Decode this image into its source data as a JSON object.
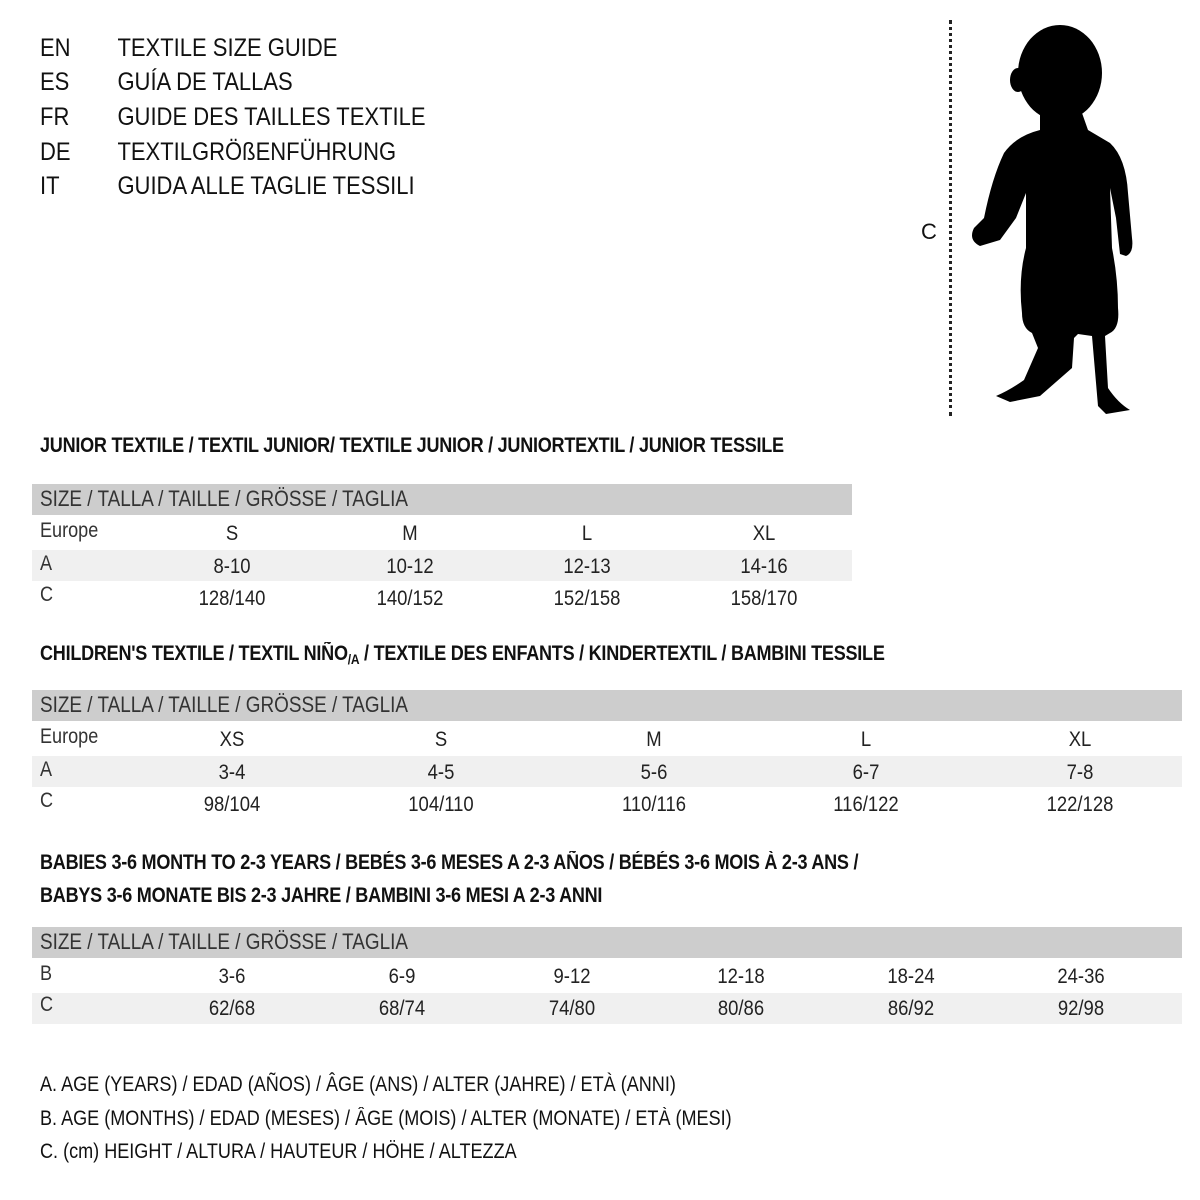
{
  "title_lines": [
    {
      "code": "EN",
      "text": "TEXTILE SIZE GUIDE"
    },
    {
      "code": "ES",
      "text": "GUÍA DE TALLAS"
    },
    {
      "code": "FR",
      "text": "GUIDE DES TAILLES TEXTILE"
    },
    {
      "code": "DE",
      "text": "TEXTILGRÖßENFÜHRUNG"
    },
    {
      "code": "IT",
      "text": "GUIDA ALLE TAGLIE TESSILI"
    }
  ],
  "figure": {
    "measure_label": "C",
    "icon": "child-silhouette-icon"
  },
  "junior": {
    "heading": "JUNIOR TEXTILE / TEXTIL JUNIOR/ TEXTILE JUNIOR / JUNIORTEXTIL / JUNIOR TESSILE",
    "header": "SIZE / TALLA / TAILLE / GRÖSSE / TAGLIA",
    "rows": [
      {
        "label": "Europe",
        "values": [
          "S",
          "M",
          "L",
          "XL"
        ]
      },
      {
        "label": "A",
        "values": [
          "8-10",
          "10-12",
          "12-13",
          "14-16"
        ]
      },
      {
        "label": "C",
        "values": [
          "128/140",
          "140/152",
          "152/158",
          "158/170"
        ]
      }
    ]
  },
  "children": {
    "heading_pre": "CHILDREN'S TEXTILE / TEXTIL NIÑO",
    "heading_sub": "/A",
    "heading_post": " / TEXTILE DES ENFANTS / KINDERTEXTIL / BAMBINI TESSILE",
    "header": "SIZE / TALLA / TAILLE / GRÖSSE / TAGLIA",
    "rows": [
      {
        "label": "Europe",
        "values": [
          "XS",
          "S",
          "M",
          "L",
          "XL"
        ]
      },
      {
        "label": "A",
        "values": [
          "3-4",
          "4-5",
          "5-6",
          "6-7",
          "7-8"
        ]
      },
      {
        "label": "C",
        "values": [
          "98/104",
          "104/110",
          "110/116",
          "116/122",
          "122/128"
        ]
      }
    ]
  },
  "babies": {
    "heading_line1": "BABIES 3-6 MONTH TO 2-3 YEARS / BEBÉS 3-6 MESES A 2-3 AÑOS / BÉBÉS 3-6 MOIS À 2-3 ANS /",
    "heading_line2": "BABYS 3-6 MONATE BIS 2-3 JAHRE / BAMBINI 3-6 MESI A 2-3 ANNI",
    "header": "SIZE / TALLA / TAILLE / GRÖSSE / TAGLIA",
    "rows": [
      {
        "label": "B",
        "values": [
          "3-6",
          "6-9",
          "9-12",
          "12-18",
          "18-24",
          "24-36"
        ]
      },
      {
        "label": "C",
        "values": [
          "62/68",
          "68/74",
          "74/80",
          "80/86",
          "86/92",
          "92/98"
        ]
      }
    ]
  },
  "legend": [
    "A. AGE (YEARS) / EDAD (AÑOS) / ÂGE (ANS) / ALTER (JAHRE) / ETÀ (ANNI)",
    "B. AGE (MONTHS) / EDAD (MESES) / ÂGE (MOIS) / ALTER (MONATE) / ETÀ (MESI)",
    "C. (cm) HEIGHT / ALTURA / HAUTEUR / HÖHE / ALTEZZA"
  ],
  "colors": {
    "header_band": "#cdcdcd",
    "shaded_row": "#f0f0f0",
    "text": "#111111"
  }
}
